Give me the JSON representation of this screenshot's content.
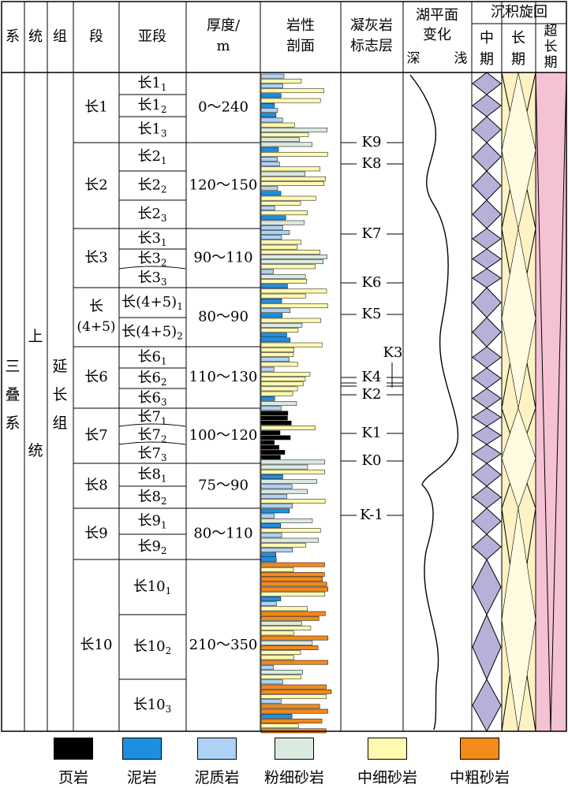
{
  "headers": {
    "system": "系",
    "series": "统",
    "group": "组",
    "member": "段",
    "submember": "亚段",
    "thickness": [
      "厚度/",
      "m"
    ],
    "lithology": [
      "岩性",
      "剖面"
    ],
    "tuff": [
      "凝灰岩",
      "标志层"
    ],
    "lake_level": "湖平面",
    "lake_level_2": "变化",
    "deep": "深",
    "shallow": "浅",
    "cycle": "沉积旋回",
    "mid": [
      "中",
      "期"
    ],
    "long": [
      "长",
      "期"
    ],
    "super": [
      "超",
      "长",
      "期"
    ]
  },
  "system_name": [
    "三",
    "叠",
    "系"
  ],
  "series_name": [
    "上",
    "统"
  ],
  "group_name": [
    "延",
    "长",
    "组"
  ],
  "members": [
    {
      "name": "长1",
      "thickness": "0～240",
      "subs": [
        {
          "base": "长1",
          "sub": "1"
        },
        {
          "base": "长1",
          "sub": "2"
        },
        {
          "base": "长1",
          "sub": "3"
        }
      ]
    },
    {
      "name": "长2",
      "thickness": "120～150",
      "subs": [
        {
          "base": "长2",
          "sub": "1"
        },
        {
          "base": "长2",
          "sub": "2"
        },
        {
          "base": "长2",
          "sub": "3"
        }
      ]
    },
    {
      "name": "长3",
      "thickness": "90～110",
      "subs": [
        {
          "base": "长3",
          "sub": "1"
        },
        {
          "base": "长3",
          "sub": "2"
        },
        {
          "base": "长3",
          "sub": "3"
        }
      ]
    },
    {
      "name": "长",
      "name2": "(4+5)",
      "thickness": "80～90",
      "subs": [
        {
          "base": "长(4+5)",
          "sub": "1"
        },
        {
          "base": "长(4+5)",
          "sub": "2"
        }
      ]
    },
    {
      "name": "长6",
      "thickness": "110～130",
      "subs": [
        {
          "base": "长6",
          "sub": "1"
        },
        {
          "base": "长6",
          "sub": "2"
        },
        {
          "base": "长6",
          "sub": "3"
        }
      ]
    },
    {
      "name": "长7",
      "thickness": "100～120",
      "subs": [
        {
          "base": "长7",
          "sub": "1"
        },
        {
          "base": "长7",
          "sub": "2"
        },
        {
          "base": "长7",
          "sub": "3"
        }
      ]
    },
    {
      "name": "长8",
      "thickness": "75～90",
      "subs": [
        {
          "base": "长8",
          "sub": "1"
        },
        {
          "base": "长8",
          "sub": "2"
        }
      ]
    },
    {
      "name": "长9",
      "thickness": "80～110",
      "subs": [
        {
          "base": "长9",
          "sub": "1"
        },
        {
          "base": "长9",
          "sub": "2"
        }
      ]
    },
    {
      "name": "长10",
      "thickness": "210～350",
      "subs": [
        {
          "base": "长10",
          "sub": "1"
        },
        {
          "base": "长10",
          "sub": "2"
        },
        {
          "base": "长10",
          "sub": "3"
        }
      ]
    }
  ],
  "tuff_markers": [
    "K9",
    "K8",
    "K7",
    "K6",
    "K5",
    "K3",
    "K4",
    "K2",
    "K1",
    "K0",
    "K-1"
  ],
  "legend": [
    {
      "label": "页岩",
      "color": "#000000"
    },
    {
      "label": "泥岩",
      "color": "#1e8fe0"
    },
    {
      "label": "泥质岩",
      "color": "#aed2f5"
    },
    {
      "label": "粉细砂岩",
      "color": "#dbeadf"
    },
    {
      "label": "中细砂岩",
      "color": "#fffab0"
    },
    {
      "label": "中粗砂岩",
      "color": "#f28a1c"
    }
  ],
  "cycle_colors": {
    "mid": "#b9b0d9",
    "long": "#fdf2c4",
    "super": "#f5c2d3"
  }
}
